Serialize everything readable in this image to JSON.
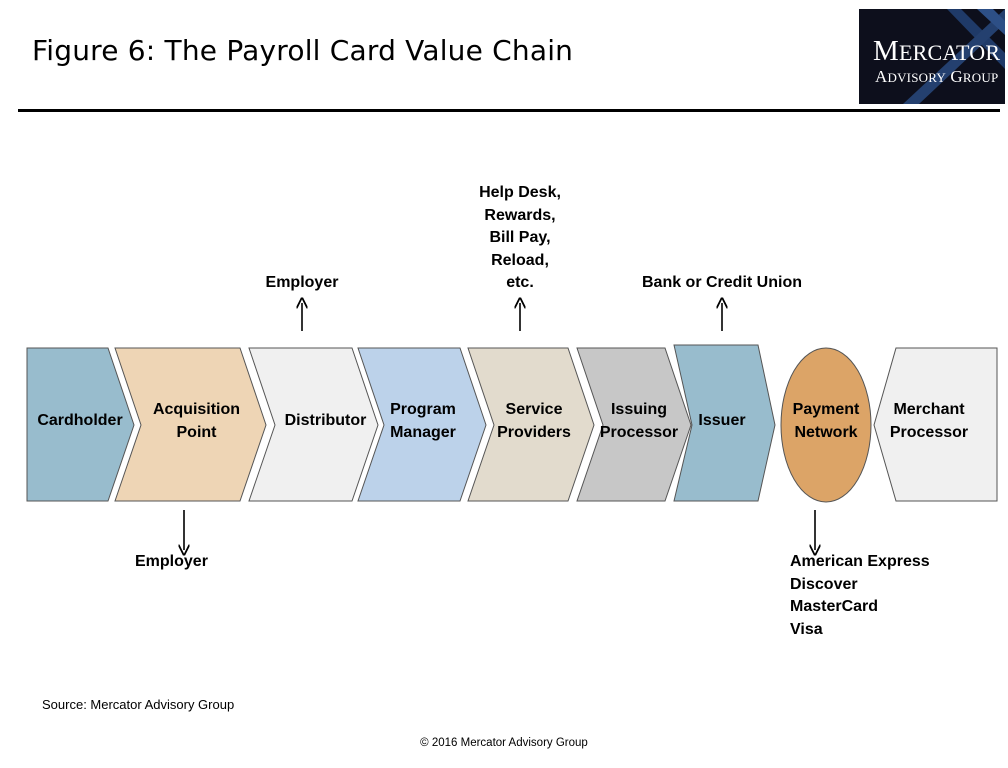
{
  "header": {
    "title": "Figure 6: The Payroll Card Value Chain",
    "logo_line1": "Mercator",
    "logo_line2": "Advisory Group"
  },
  "chain": [
    {
      "label": "Cardholder",
      "color": "#98bccd"
    },
    {
      "label": "Acquisition\nPoint",
      "color": "#eed5b5"
    },
    {
      "label": "Distributor",
      "color": "#f0f0f0"
    },
    {
      "label": "Program\nManager",
      "color": "#bcd2ea"
    },
    {
      "label": "Service\nProviders",
      "color": "#e2dbcd"
    },
    {
      "label": "Issuing\nProcessor",
      "color": "#c7c7c7"
    },
    {
      "label": "Issuer",
      "color": "#98bccd"
    },
    {
      "label": "Payment\nNetwork",
      "color": "#dca467"
    },
    {
      "label": "Merchant\nProcessor",
      "color": "#f0f0f0"
    }
  ],
  "annotations_above": {
    "distributor": "Employer",
    "service_providers": "Help Desk,\nRewards,\nBill Pay,\nReload,\netc.",
    "issuer": "Bank or Credit Union"
  },
  "annotations_below": {
    "acquisition_point": "Employer",
    "payment_network": [
      "American Express",
      "Discover",
      "MasterCard",
      "Visa"
    ]
  },
  "footer": {
    "source": "Source: Mercator Advisory Group",
    "copyright": "© 2016 Mercator Advisory Group"
  }
}
